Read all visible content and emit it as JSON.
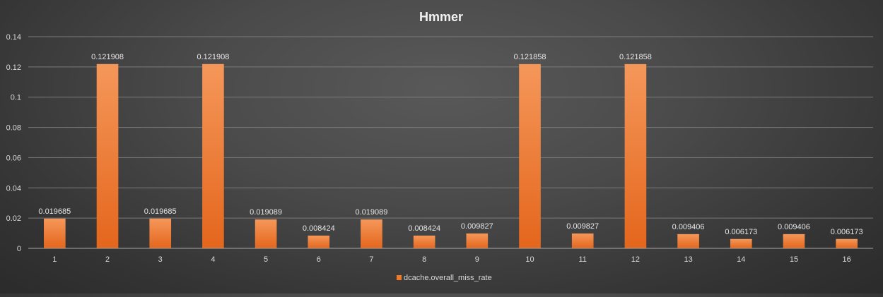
{
  "chart_data": {
    "type": "bar",
    "title": "Hmmer",
    "categories": [
      "1",
      "2",
      "3",
      "4",
      "5",
      "6",
      "7",
      "8",
      "9",
      "10",
      "11",
      "12",
      "13",
      "14",
      "15",
      "16"
    ],
    "series": [
      {
        "name": "dcache.overall_miss_rate",
        "values": [
          0.019685,
          0.121908,
          0.019685,
          0.121908,
          0.019089,
          0.008424,
          0.019089,
          0.008424,
          0.009827,
          0.121858,
          0.009827,
          0.121858,
          0.009406,
          0.006173,
          0.009406,
          0.006173
        ],
        "labels": [
          "0.019685",
          "0.121908",
          "0.019685",
          "0.121908",
          "0.019089",
          "0.008424",
          "0.019089",
          "0.008424",
          "0.009827",
          "0.121858",
          "0.009827",
          "0.121858",
          "0.009406",
          "0.006173",
          "0.009406",
          "0.006173"
        ],
        "color": "#f07a28"
      }
    ],
    "yticks": [
      "0",
      "0.02",
      "0.04",
      "0.06",
      "0.08",
      "0.1",
      "0.12",
      "0.14"
    ],
    "ylim": [
      0,
      0.14
    ],
    "xlabel": "",
    "ylabel": "",
    "grid": true,
    "legend_position": "bottom"
  }
}
